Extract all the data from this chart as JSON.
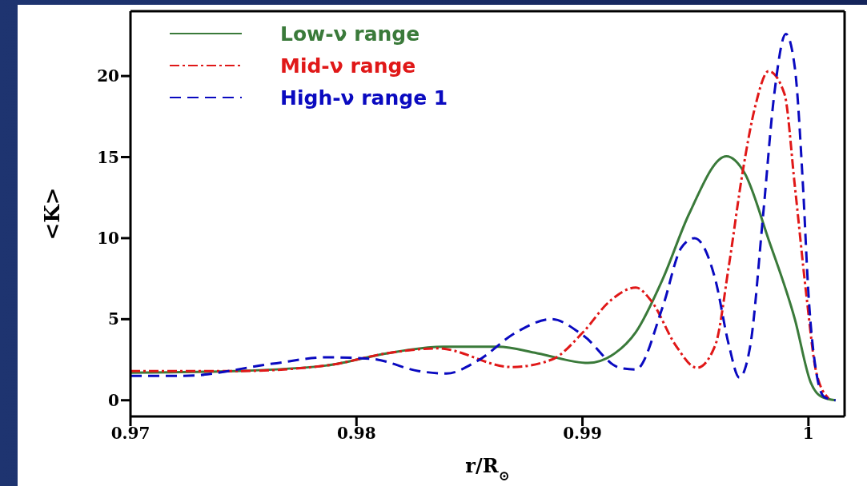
{
  "chart_data": {
    "type": "line",
    "xlabel": "r/R$_{⊙}$",
    "ylabel": "<K>",
    "xlim": [
      0.97,
      1.0016
    ],
    "ylim": [
      -1,
      24
    ],
    "xticks": [
      0.97,
      0.98,
      0.99,
      {
        "value": 1.0,
        "label": "1"
      }
    ],
    "yticks": [
      0,
      5,
      10,
      15,
      20
    ],
    "legend": "top left",
    "marker": "none",
    "series": [
      {
        "name": "Low-ν range",
        "color": "#3a7a3a",
        "line_style": "solid",
        "x": [
          0.97,
          0.97461,
          0.9787,
          0.98137,
          0.98384,
          0.98627,
          0.988,
          0.99025,
          0.99144,
          0.99236,
          0.99356,
          0.99472,
          0.99637,
          0.99718,
          0.99824,
          0.9994,
          1.0001,
          1.0006,
          1.0012
        ],
        "values": [
          1.7,
          1.8,
          2.15,
          2.9,
          3.3,
          3.3,
          2.9,
          2.3,
          2.9,
          4.2,
          7.5,
          11.5,
          15.05,
          14,
          9.9,
          5,
          1.1,
          0.2,
          0
        ]
      },
      {
        "name": "Mid-ν range",
        "color": "#e01818",
        "line_style": "dashdot",
        "x": [
          0.97,
          0.97461,
          0.9787,
          0.98137,
          0.9836,
          0.98687,
          0.98863,
          0.99003,
          0.9912,
          0.99236,
          0.99306,
          0.99412,
          0.99507,
          0.99588,
          0.99648,
          0.99708,
          0.99764,
          0.99824,
          0.99894,
          0.9994,
          0.9999,
          1.00035,
          1.0009
        ],
        "values": [
          1.8,
          1.8,
          2.15,
          2.9,
          3.2,
          2.05,
          2.5,
          4.2,
          6.1,
          6.95,
          6.1,
          3.4,
          2.0,
          3.4,
          8.3,
          14,
          18.1,
          20.3,
          18.9,
          13.2,
          6.6,
          1.7,
          0.1
        ]
      },
      {
        "name": "High-ν range 1",
        "color": "#0a0ac0",
        "line_style": "dashed",
        "x": [
          0.97,
          0.97232,
          0.97627,
          0.9787,
          0.9807,
          0.98275,
          0.98398,
          0.98532,
          0.98708,
          0.98863,
          0.99003,
          0.99165,
          0.99236,
          0.99356,
          0.99437,
          0.99496,
          0.99588,
          0.99648,
          0.99694,
          0.99743,
          0.998,
          0.99849,
          0.999,
          0.9994,
          0.99976,
          1.0,
          1.00035,
          1.0007,
          1.0012
        ],
        "values": [
          1.5,
          1.5,
          2.25,
          2.65,
          2.55,
          1.8,
          1.65,
          2.4,
          4.2,
          5.0,
          4.0,
          2.0,
          1.9,
          5.8,
          9.4,
          10.0,
          7.45,
          3.4,
          1.4,
          3.4,
          11.5,
          18.9,
          22.6,
          20.5,
          13.2,
          6.6,
          1.7,
          0.2,
          0
        ]
      }
    ]
  }
}
